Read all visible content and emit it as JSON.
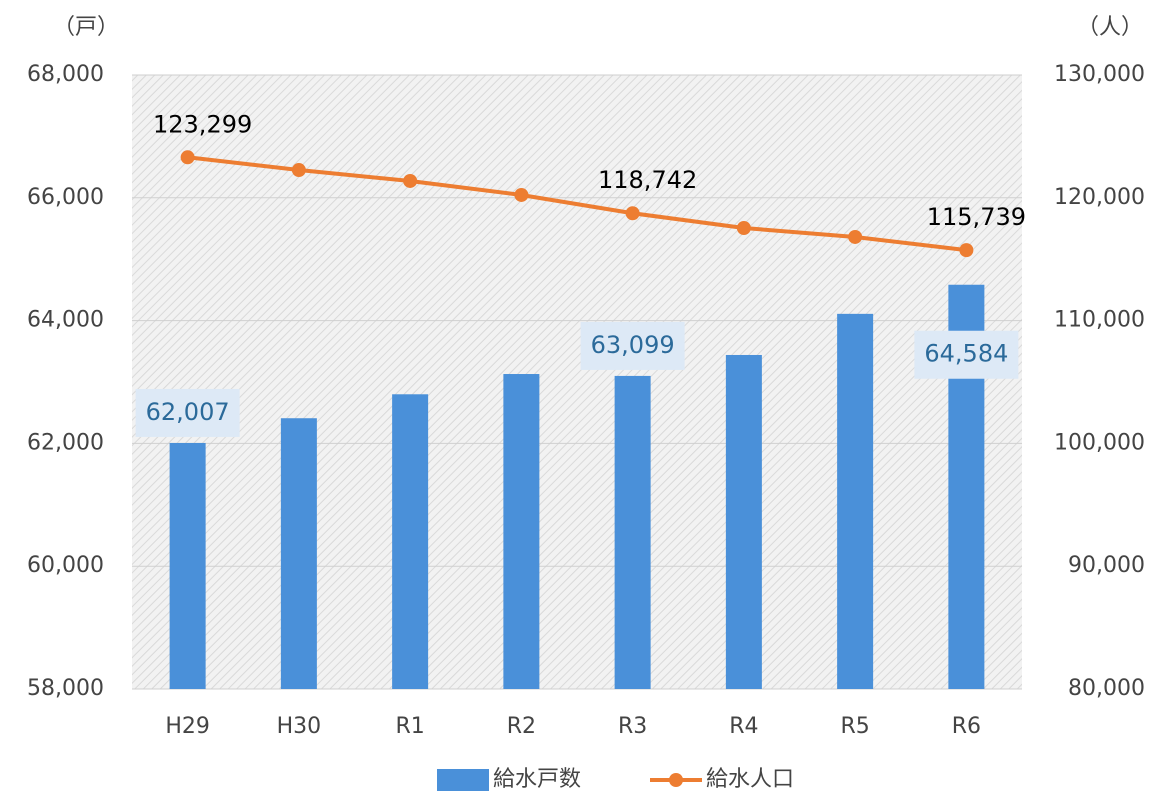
{
  "chart_data": {
    "type": "bar_line",
    "y_label": "（戸）",
    "y2_label": "（人）",
    "categories": [
      "H29",
      "H30",
      "R1",
      "R2",
      "R3",
      "R4",
      "R5",
      "R6"
    ],
    "series": [
      {
        "name": "給水戸数",
        "type": "bar",
        "color": "#4a90d9",
        "axis": "y",
        "values": [
          62007,
          62410,
          62800,
          63130,
          63099,
          63440,
          64110,
          64584
        ],
        "value_labels": [
          "62,007",
          null,
          null,
          null,
          "63,099",
          null,
          null,
          "64,584"
        ]
      },
      {
        "name": "給水人口",
        "type": "line",
        "color": "#ed7d31",
        "axis": "y2",
        "values": [
          123299,
          122260,
          121370,
          120230,
          118742,
          117540,
          116810,
          115739
        ],
        "value_labels": [
          "123,299",
          null,
          null,
          null,
          "118,742",
          null,
          null,
          "115,739"
        ]
      }
    ],
    "ylim": [
      58000,
      68000
    ],
    "yticks": [
      {
        "value": 58000,
        "label": "58,000"
      },
      {
        "value": 60000,
        "label": "60,000"
      },
      {
        "value": 62000,
        "label": "62,000"
      },
      {
        "value": 64000,
        "label": "64,000"
      },
      {
        "value": 66000,
        "label": "66,000"
      },
      {
        "value": 68000,
        "label": "68,000"
      }
    ],
    "y2lim": [
      80000,
      130000
    ],
    "y2ticks": [
      {
        "value": 80000,
        "label": "80,000"
      },
      {
        "value": 90000,
        "label": "90,000"
      },
      {
        "value": 100000,
        "label": "100,000"
      },
      {
        "value": 110000,
        "label": "110,000"
      },
      {
        "value": 120000,
        "label": "120,000"
      },
      {
        "value": 130000,
        "label": "130,000"
      }
    ],
    "grid": true,
    "legend": "bottom"
  }
}
